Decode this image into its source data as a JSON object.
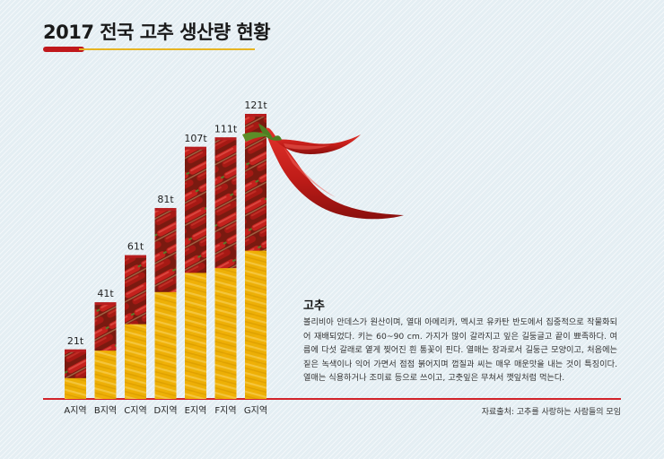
{
  "chart_data": {
    "type": "bar",
    "title": "2017 전국 고추 생산량 현황",
    "categories": [
      "A지역",
      "B지역",
      "C지역",
      "D지역",
      "E지역",
      "F지역",
      "G지역"
    ],
    "values": [
      21,
      41,
      61,
      81,
      107,
      111,
      121
    ],
    "value_labels": [
      "21t",
      "41t",
      "61t",
      "81t",
      "107t",
      "111t",
      "121t"
    ],
    "unit": "t",
    "ylim": [
      0,
      121
    ],
    "grid": false,
    "legend": "none",
    "colors": {
      "baseline": "#d2232a",
      "bar_lower": "#f2b705",
      "bar_upper": "#b81d1f",
      "accent": "#c0181c"
    }
  },
  "description": {
    "title": "고추",
    "body": "볼리비아 안데스가 원산이며, 열대 아메리카, 멕시코 유카탄 반도에서 집중적으로 작물화되어 재배되었다. 키는 60~90 cm. 가지가 많이 갈라지고 잎은 길둥글고 끝이 뾰족하다. 여름에 다섯 갈래로 옅게 찢어진 흰 통꽃이 핀다. 열매는 장과로서 길둥근 모양이고, 처음에는 짙은 녹색이나 익어 가면서 점점 붉어지며 껍질과 씨는 매우 매운맛을 내는 것이 특징이다. 열매는 식용하거나 조미료 등으로 쓰이고, 고춧잎은 무쳐서 깻잎처럼 먹는다."
  },
  "source": "자료출처: 고추를 사랑하는 사람들의 모임",
  "icons": [
    "red-chili-pepper-icon"
  ]
}
